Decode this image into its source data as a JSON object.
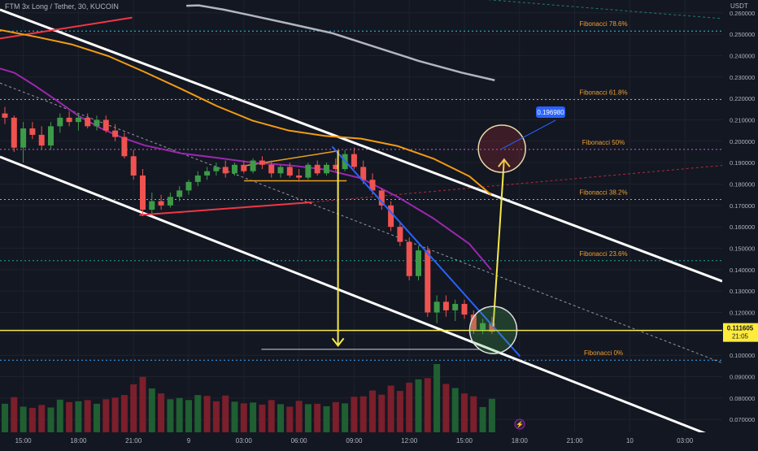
{
  "header": {
    "title": "FTM 3x Long / Tether, 30, KUCOIN",
    "unit": "USDT"
  },
  "colors": {
    "bg": "#131722",
    "grid": "#1e222d",
    "up": "#26a69a",
    "up_fill": "#3d9a48",
    "down": "#ef5350",
    "vol_up": "#1f5f32",
    "vol_down": "#7a1f2b",
    "fib": "#e6a020",
    "fib_label": "#f0a030",
    "purple_ma": "#9c27b0",
    "orange_ma": "#f39c12",
    "gray_ma": "#b2b5be",
    "channel": "#ffffff",
    "yellow": "#f5e94a",
    "blue": "#2962ff",
    "red_line": "#f23645",
    "axis_text": "#b2b5be",
    "price_tag": "#ffeb3b"
  },
  "chart_data": {
    "type": "candlestick",
    "ylim": [
      0.064,
      0.266
    ],
    "y_ticks": [
      "0.260000",
      "0.250000",
      "0.240000",
      "0.230000",
      "0.220000",
      "0.210000",
      "0.200000",
      "0.190000",
      "0.180000",
      "0.170000",
      "0.160000",
      "0.150000",
      "0.140000",
      "0.130000",
      "0.120000",
      "0.110000",
      "0.100000",
      "0.090000",
      "0.080000",
      "0.070000"
    ],
    "x_ticks": [
      {
        "i": 2,
        "label": "15:00"
      },
      {
        "i": 8,
        "label": "18:00"
      },
      {
        "i": 14,
        "label": "21:00"
      },
      {
        "i": 20,
        "label": "9"
      },
      {
        "i": 26,
        "label": "03:00"
      },
      {
        "i": 32,
        "label": "06:00"
      },
      {
        "i": 38,
        "label": "09:00"
      },
      {
        "i": 44,
        "label": "12:00"
      },
      {
        "i": 50,
        "label": "15:00"
      },
      {
        "i": 56,
        "label": "18:00"
      },
      {
        "i": 62,
        "label": "21:00"
      },
      {
        "i": 68,
        "label": "10"
      },
      {
        "i": 74,
        "label": "03:00"
      }
    ],
    "last_price": "0.111605",
    "countdown": "21:05",
    "target_label": "0.196980",
    "target_value": 0.19698,
    "fibonacci": [
      {
        "label": "Fibonacci 78.6%",
        "value": 0.2515,
        "color": "#26c6da"
      },
      {
        "label": "Fibonacci 61.8%",
        "value": 0.2195,
        "color": "#e6a020"
      },
      {
        "label": "Fibonacci 50%",
        "value": 0.1962,
        "color": "#ba68c8"
      },
      {
        "label": "Fibonacci 38.2%",
        "value": 0.1728,
        "color": "#e6a020"
      },
      {
        "label": "Fibonacci 23.6%",
        "value": 0.1442,
        "color": "#26a69a"
      },
      {
        "label": "Fibonacci 0%",
        "value": 0.0977,
        "color": "#42a5f5"
      }
    ],
    "candles": [
      [
        0.213,
        0.216,
        0.208,
        0.211
      ],
      [
        0.211,
        0.212,
        0.195,
        0.197
      ],
      [
        0.197,
        0.209,
        0.19,
        0.206
      ],
      [
        0.206,
        0.209,
        0.201,
        0.203
      ],
      [
        0.203,
        0.207,
        0.196,
        0.198
      ],
      [
        0.198,
        0.209,
        0.196,
        0.207
      ],
      [
        0.207,
        0.213,
        0.204,
        0.211
      ],
      [
        0.211,
        0.214,
        0.207,
        0.209
      ],
      [
        0.209,
        0.213,
        0.205,
        0.211
      ],
      [
        0.211,
        0.213,
        0.206,
        0.207
      ],
      [
        0.207,
        0.212,
        0.205,
        0.21
      ],
      [
        0.21,
        0.212,
        0.204,
        0.205
      ],
      [
        0.205,
        0.208,
        0.2,
        0.202
      ],
      [
        0.202,
        0.204,
        0.192,
        0.193
      ],
      [
        0.193,
        0.196,
        0.182,
        0.184
      ],
      [
        0.184,
        0.187,
        0.165,
        0.168
      ],
      [
        0.168,
        0.176,
        0.166,
        0.172
      ],
      [
        0.172,
        0.175,
        0.168,
        0.17
      ],
      [
        0.17,
        0.176,
        0.169,
        0.174
      ],
      [
        0.174,
        0.179,
        0.172,
        0.177
      ],
      [
        0.177,
        0.182,
        0.175,
        0.181
      ],
      [
        0.181,
        0.186,
        0.179,
        0.184
      ],
      [
        0.184,
        0.188,
        0.182,
        0.186
      ],
      [
        0.186,
        0.19,
        0.184,
        0.188
      ],
      [
        0.188,
        0.191,
        0.183,
        0.185
      ],
      [
        0.185,
        0.19,
        0.184,
        0.189
      ],
      [
        0.189,
        0.191,
        0.185,
        0.186
      ],
      [
        0.186,
        0.192,
        0.185,
        0.191
      ],
      [
        0.191,
        0.193,
        0.187,
        0.189
      ],
      [
        0.189,
        0.191,
        0.183,
        0.185
      ],
      [
        0.185,
        0.189,
        0.183,
        0.188
      ],
      [
        0.188,
        0.19,
        0.183,
        0.184
      ],
      [
        0.184,
        0.187,
        0.181,
        0.183
      ],
      [
        0.183,
        0.19,
        0.182,
        0.189
      ],
      [
        0.189,
        0.191,
        0.184,
        0.185
      ],
      [
        0.185,
        0.19,
        0.184,
        0.189
      ],
      [
        0.189,
        0.192,
        0.186,
        0.187
      ],
      [
        0.187,
        0.196,
        0.186,
        0.194
      ],
      [
        0.194,
        0.197,
        0.187,
        0.188
      ],
      [
        0.188,
        0.191,
        0.18,
        0.182
      ],
      [
        0.182,
        0.185,
        0.175,
        0.177
      ],
      [
        0.177,
        0.178,
        0.168,
        0.17
      ],
      [
        0.17,
        0.172,
        0.158,
        0.16
      ],
      [
        0.16,
        0.162,
        0.151,
        0.153
      ],
      [
        0.153,
        0.155,
        0.135,
        0.137
      ],
      [
        0.137,
        0.151,
        0.135,
        0.149
      ],
      [
        0.149,
        0.151,
        0.118,
        0.12
      ],
      [
        0.12,
        0.128,
        0.115,
        0.125
      ],
      [
        0.125,
        0.128,
        0.118,
        0.121
      ],
      [
        0.121,
        0.126,
        0.116,
        0.124
      ],
      [
        0.124,
        0.126,
        0.117,
        0.119
      ],
      [
        0.119,
        0.121,
        0.11,
        0.112
      ],
      [
        0.112,
        0.117,
        0.11,
        0.115
      ],
      [
        0.115,
        0.118,
        0.11,
        0.111
      ]
    ],
    "volumes": [
      [
        6.9,
        0
      ],
      [
        8.5,
        1
      ],
      [
        6.2,
        0
      ],
      [
        5.9,
        1
      ],
      [
        6.6,
        1
      ],
      [
        6.0,
        0
      ],
      [
        7.9,
        0
      ],
      [
        7.3,
        1
      ],
      [
        7.5,
        0
      ],
      [
        7.8,
        1
      ],
      [
        6.9,
        0
      ],
      [
        8.0,
        1
      ],
      [
        8.4,
        1
      ],
      [
        9.0,
        1
      ],
      [
        11.6,
        1
      ],
      [
        13.4,
        1
      ],
      [
        10.6,
        0
      ],
      [
        9.4,
        1
      ],
      [
        8.0,
        0
      ],
      [
        8.3,
        0
      ],
      [
        7.8,
        0
      ],
      [
        9.0,
        0
      ],
      [
        8.8,
        1
      ],
      [
        7.5,
        1
      ],
      [
        8.9,
        1
      ],
      [
        7.4,
        0
      ],
      [
        7.0,
        1
      ],
      [
        7.2,
        0
      ],
      [
        6.7,
        1
      ],
      [
        7.8,
        1
      ],
      [
        6.8,
        0
      ],
      [
        6.2,
        1
      ],
      [
        7.6,
        1
      ],
      [
        6.8,
        0
      ],
      [
        6.9,
        1
      ],
      [
        6.3,
        0
      ],
      [
        7.3,
        1
      ],
      [
        7.0,
        0
      ],
      [
        8.6,
        1
      ],
      [
        8.7,
        1
      ],
      [
        10.1,
        1
      ],
      [
        9.1,
        1
      ],
      [
        11.3,
        1
      ],
      [
        10.0,
        1
      ],
      [
        12.0,
        1
      ],
      [
        12.8,
        0
      ],
      [
        13.1,
        1
      ],
      [
        16.5,
        0
      ],
      [
        11.7,
        1
      ],
      [
        10.7,
        0
      ],
      [
        9.4,
        1
      ],
      [
        8.7,
        1
      ],
      [
        6.1,
        0
      ],
      [
        8.1,
        0
      ]
    ],
    "vol_max": 16.5,
    "ma_gray": [
      [
        0.258,
        0.2633
      ],
      [
        0.275,
        0.2635
      ],
      [
        0.31,
        0.2615
      ],
      [
        0.345,
        0.259
      ],
      [
        0.4,
        0.255
      ],
      [
        0.46,
        0.2505
      ],
      [
        0.52,
        0.244
      ],
      [
        0.58,
        0.2375
      ],
      [
        0.64,
        0.232
      ],
      [
        0.685,
        0.2285
      ]
    ],
    "ma_orange": [
      [
        0.0,
        0.252
      ],
      [
        0.05,
        0.2488
      ],
      [
        0.1,
        0.2452
      ],
      [
        0.15,
        0.2398
      ],
      [
        0.2,
        0.2324
      ],
      [
        0.25,
        0.2246
      ],
      [
        0.3,
        0.2165
      ],
      [
        0.35,
        0.2096
      ],
      [
        0.4,
        0.205
      ],
      [
        0.45,
        0.2025
      ],
      [
        0.5,
        0.2012
      ],
      [
        0.55,
        0.1978
      ],
      [
        0.6,
        0.1919
      ],
      [
        0.65,
        0.1836
      ],
      [
        0.68,
        0.175
      ]
    ],
    "ma_purple": [
      [
        0.0,
        0.234
      ],
      [
        0.02,
        0.232
      ],
      [
        0.05,
        0.2256
      ],
      [
        0.08,
        0.2187
      ],
      [
        0.11,
        0.2116
      ],
      [
        0.14,
        0.206
      ],
      [
        0.17,
        0.2016
      ],
      [
        0.2,
        0.1981
      ],
      [
        0.25,
        0.1944
      ],
      [
        0.3,
        0.1923
      ],
      [
        0.35,
        0.19
      ],
      [
        0.4,
        0.1888
      ],
      [
        0.45,
        0.1868
      ],
      [
        0.5,
        0.1827
      ],
      [
        0.55,
        0.1741
      ],
      [
        0.6,
        0.164
      ],
      [
        0.65,
        0.152
      ],
      [
        0.68,
        0.14
      ]
    ],
    "channel_upper": [
      [
        0.0,
        0.2615
      ],
      [
        1.0,
        0.1346
      ]
    ],
    "channel_lower": [
      [
        0.0,
        0.1927
      ],
      [
        1.0,
        0.0604
      ]
    ],
    "channel_mid_dash": [
      [
        0.0,
        0.2272
      ],
      [
        1.0,
        0.0964
      ]
    ],
    "trend_red_top": [
      [
        0.0,
        0.248
      ],
      [
        0.183,
        0.2578
      ]
    ],
    "trend_red_bottom": [
      [
        0.193,
        0.1655
      ],
      [
        0.432,
        0.1715
      ]
    ],
    "dashed_red_ext": [
      [
        0.432,
        0.1715
      ],
      [
        1.0,
        0.1887
      ]
    ],
    "dashed_teal_top": [
      [
        0.67,
        0.2663
      ],
      [
        1.0,
        0.2573
      ]
    ],
    "blue_trend": [
      [
        0.46,
        0.1975
      ],
      [
        0.72,
        0.0995
      ]
    ],
    "consolidation_top": [
      [
        0.338,
        0.1885
      ],
      [
        0.47,
        0.1956
      ]
    ],
    "consolidation_bottom": [
      [
        0.338,
        0.1815
      ],
      [
        0.48,
        0.1815
      ]
    ],
    "horizontal_white": [
      [
        0.362,
        0.1028
      ],
      [
        0.665,
        0.1028
      ]
    ],
    "yellow_level": 0.1116,
    "arrow_down": {
      "x": 0.468,
      "y1": 0.1953,
      "y2": 0.1045
    },
    "arrow_up": {
      "x1": 0.683,
      "y1": 0.1135,
      "x2": 0.698,
      "y2": 0.1915
    },
    "circle_target": {
      "x": 0.695,
      "y": 0.1965
    },
    "circle_entry": {
      "x": 0.683,
      "y": 0.1118
    }
  }
}
